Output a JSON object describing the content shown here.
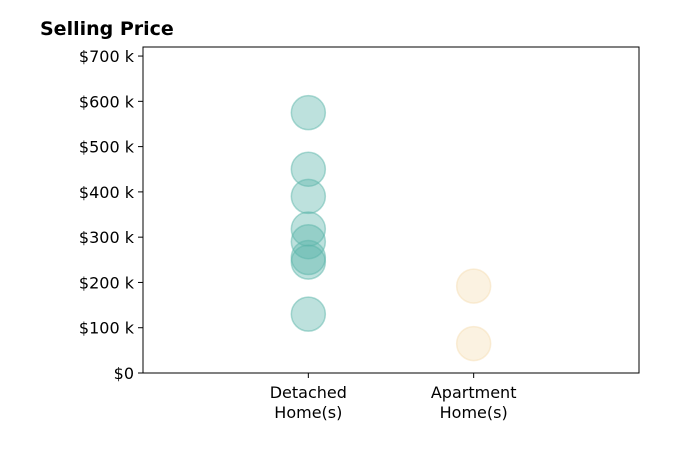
{
  "chart_data": {
    "type": "scatter",
    "title": "Selling Price",
    "xlabel": "",
    "ylabel": "",
    "categories": [
      [
        "Detached",
        "Home(s)"
      ],
      [
        "Apartment",
        "Home(s)"
      ]
    ],
    "xlim": [
      0,
      3
    ],
    "ylim": [
      0,
      720
    ],
    "yticks": [
      0,
      100,
      200,
      300,
      400,
      500,
      600,
      700
    ],
    "ytick_labels": [
      "$0",
      "$100 k",
      "$200 k",
      "$300 k",
      "$400 k",
      "$500 k",
      "$600 k",
      "$700 k"
    ],
    "grid": false,
    "legend": "none",
    "series": [
      {
        "category_index": 0,
        "color": "#5bb5aa",
        "values": [
          575,
          450,
          390,
          318,
          290,
          255,
          245,
          130
        ]
      },
      {
        "category_index": 1,
        "color": "#f5deb3",
        "values": [
          192,
          65
        ]
      }
    ]
  }
}
